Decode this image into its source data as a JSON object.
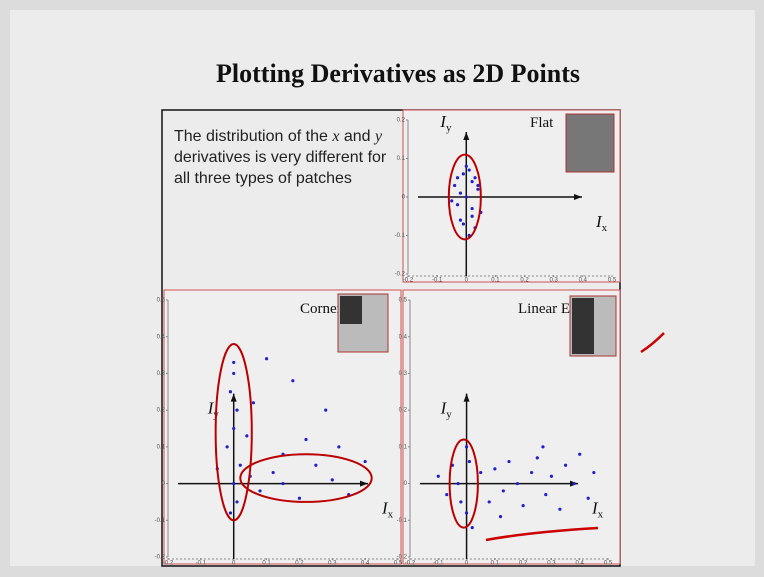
{
  "title": "Plotting Derivatives as 2D Points",
  "description": [
    "The distribution of the ",
    "x",
    " and ",
    "y",
    " derivatives is very different for all three types of patches"
  ],
  "panels": [
    {
      "type": "scatter",
      "name": "Flat",
      "color": "#2020d0",
      "xlim": [
        -0.2,
        0.5
      ],
      "ylim": [
        -0.2,
        0.2
      ],
      "xticks": [
        -0.2,
        -0.1,
        0,
        0.1,
        0.2,
        0.3,
        0.4,
        0.5
      ],
      "yticks": [
        0.2,
        0.1,
        0,
        -0.1,
        -0.2
      ],
      "x_label": {
        "main": "I",
        "sub": "x"
      },
      "y_label": {
        "main": "I",
        "sub": "y"
      },
      "x": [
        -0.03,
        0.01,
        0.02,
        -0.02,
        0.04,
        0.0,
        -0.04,
        0.03,
        -0.01,
        0.02,
        -0.03,
        0.05,
        0.01,
        -0.02,
        0.0,
        0.03,
        -0.05,
        0.02,
        -0.01,
        0.04
      ],
      "y": [
        0.05,
        0.07,
        -0.03,
        -0.06,
        0.02,
        0.0,
        0.03,
        -0.08,
        0.06,
        0.04,
        -0.02,
        -0.04,
        -0.1,
        0.01,
        0.08,
        0.05,
        -0.01,
        -0.05,
        -0.07,
        0.03
      ]
    },
    {
      "type": "scatter",
      "name": "Corner",
      "color": "#2020d0",
      "xlim": [
        -0.2,
        0.5
      ],
      "ylim": [
        -0.2,
        0.5
      ],
      "xticks": [
        -0.2,
        -0.1,
        0,
        0.1,
        0.2,
        0.3,
        0.4,
        0.5
      ],
      "yticks": [
        0.5,
        0.4,
        0.3,
        0.2,
        0.1,
        0,
        -0.1,
        -0.2
      ],
      "x_label": {
        "main": "I",
        "sub": "x"
      },
      "y_label": {
        "main": "I",
        "sub": "y"
      },
      "x": [
        0.0,
        0.0,
        -0.01,
        0.01,
        0.0,
        -0.02,
        0.02,
        0.0,
        0.01,
        -0.01,
        0.05,
        0.08,
        0.12,
        0.15,
        0.2,
        0.25,
        0.3,
        0.35,
        0.4,
        0.1,
        0.18,
        0.28,
        0.22,
        0.06,
        0.15,
        -0.05,
        0.04,
        0.32
      ],
      "y": [
        0.33,
        0.3,
        0.25,
        0.2,
        0.15,
        0.1,
        0.05,
        0.0,
        -0.05,
        -0.08,
        0.02,
        -0.02,
        0.03,
        0.0,
        -0.04,
        0.05,
        0.01,
        -0.03,
        0.06,
        0.34,
        0.28,
        0.2,
        0.12,
        0.22,
        0.08,
        0.04,
        0.13,
        0.1
      ]
    },
    {
      "type": "scatter",
      "name": "Linear Edge",
      "color": "#2020d0",
      "xlim": [
        -0.2,
        0.5
      ],
      "ylim": [
        -0.2,
        0.5
      ],
      "xticks": [
        -0.2,
        -0.1,
        0,
        0.1,
        0.2,
        0.3,
        0.4,
        0.5
      ],
      "yticks": [
        0.5,
        0.4,
        0.3,
        0.2,
        0.1,
        0,
        -0.1,
        -0.2
      ],
      "x_label": {
        "main": "I",
        "sub": "x"
      },
      "y_label": {
        "main": "I",
        "sub": "y"
      },
      "x": [
        -0.1,
        -0.07,
        -0.05,
        -0.03,
        0.0,
        0.02,
        0.05,
        0.08,
        0.1,
        0.13,
        0.15,
        0.18,
        0.2,
        0.23,
        0.25,
        0.28,
        0.3,
        0.33,
        0.35,
        0.38,
        0.4,
        0.43,
        0.45,
        0.0,
        0.01,
        -0.02,
        0.12,
        0.27
      ],
      "y": [
        0.02,
        -0.03,
        0.05,
        0.0,
        0.1,
        -0.12,
        0.03,
        -0.05,
        0.04,
        -0.02,
        0.06,
        0.0,
        -0.06,
        0.03,
        0.07,
        -0.03,
        0.02,
        -0.07,
        0.05,
        0.0,
        0.08,
        -0.04,
        0.03,
        -0.08,
        0.06,
        -0.05,
        -0.09,
        0.1
      ]
    }
  ]
}
